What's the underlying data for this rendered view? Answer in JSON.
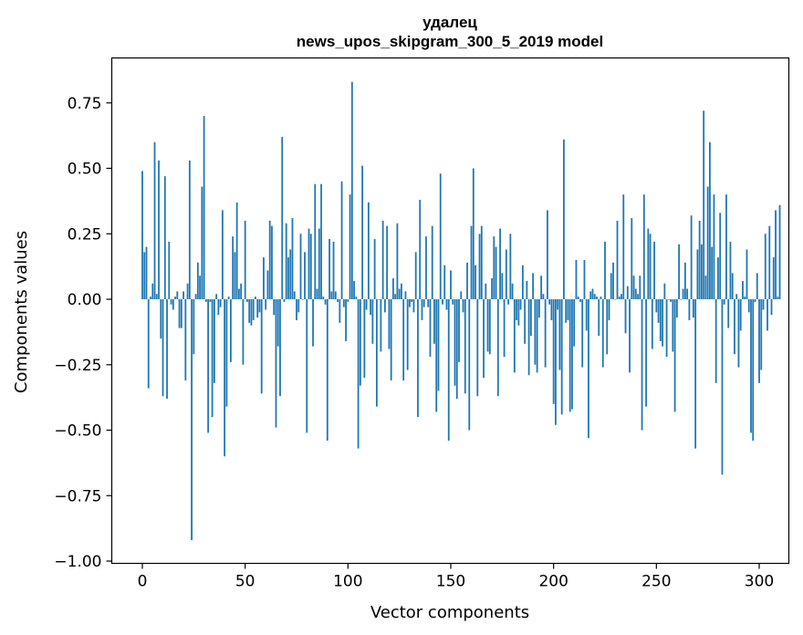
{
  "chart_data": {
    "type": "bar",
    "title": "удалец",
    "subtitle": "news_upos_skipgram_300_5_2019 model",
    "xlabel": "Vector components",
    "ylabel": "Components values",
    "xlim": [
      -15,
      315
    ],
    "ylim": [
      -1.02,
      0.92
    ],
    "xticks": [
      0,
      50,
      100,
      150,
      200,
      250,
      300
    ],
    "xtick_labels": [
      "0",
      "50",
      "100",
      "150",
      "200",
      "250",
      "300"
    ],
    "yticks": [
      -1.0,
      -0.75,
      -0.5,
      -0.25,
      0.0,
      0.25,
      0.5,
      0.75
    ],
    "ytick_labels": [
      "−1.00",
      "−0.75",
      "−0.50",
      "−0.25",
      "0.00",
      "0.25",
      "0.50",
      "0.75"
    ],
    "bar_color": "#1f77b4",
    "values": [
      0.49,
      0.18,
      0.2,
      -0.34,
      0.01,
      0.06,
      0.6,
      0.02,
      0.53,
      -0.15,
      -0.37,
      0.47,
      -0.38,
      0.22,
      -0.02,
      -0.04,
      0.01,
      0.03,
      -0.11,
      -0.11,
      0.03,
      -0.31,
      0.06,
      0.53,
      -0.92,
      -0.21,
      0.02,
      0.14,
      0.09,
      0.43,
      0.7,
      -0.01,
      -0.51,
      -0.01,
      -0.45,
      -0.32,
      0.02,
      -0.06,
      -0.03,
      0.34,
      -0.6,
      -0.41,
      0.01,
      -0.24,
      0.24,
      0.18,
      0.37,
      0.04,
      0.06,
      -0.25,
      0.3,
      -0.01,
      -0.09,
      -0.1,
      -0.08,
      0.01,
      -0.07,
      -0.05,
      -0.36,
      0.16,
      -0.04,
      0.11,
      0.3,
      0.28,
      -0.06,
      -0.49,
      -0.18,
      -0.37,
      0.62,
      -0.01,
      0.29,
      0.16,
      0.19,
      0.31,
      0.03,
      -0.08,
      -0.05,
      0.25,
      0.0,
      0.18,
      -0.51,
      0.27,
      0.25,
      -0.18,
      0.44,
      0.04,
      0.27,
      0.44,
      0.01,
      -0.02,
      -0.54,
      0.23,
      0.03,
      0.22,
      0.03,
      -0.01,
      -0.09,
      0.45,
      -0.03,
      -0.16,
      -0.01,
      0.4,
      0.83,
      0.07,
      0.01,
      -0.57,
      -0.33,
      0.51,
      -0.3,
      -0.04,
      0.37,
      -0.06,
      -0.17,
      0.23,
      -0.41,
      0.0,
      -0.2,
      0.3,
      -0.05,
      0.28,
      -0.19,
      -0.31,
      0.08,
      0.02,
      0.29,
      0.04,
      0.06,
      -0.31,
      0.03,
      -0.27,
      -0.03,
      -0.01,
      -0.05,
      0.18,
      -0.45,
      0.38,
      -0.08,
      -0.03,
      0.24,
      -0.03,
      -0.22,
      0.28,
      -0.17,
      -0.43,
      -0.35,
      0.48,
      -0.02,
      0.13,
      -0.04,
      -0.54,
      0.11,
      -0.02,
      -0.33,
      -0.38,
      -0.24,
      0.03,
      -0.05,
      -0.36,
      0.14,
      -0.5,
      0.28,
      0.5,
      0.13,
      -0.37,
      0.25,
      0.28,
      -0.3,
      0.06,
      -0.2,
      -0.21,
      0.08,
      0.24,
      0.2,
      -0.37,
      0.27,
      0.1,
      -0.22,
      0.19,
      -0.02,
      0.25,
      0.06,
      -0.28,
      -0.08,
      -0.1,
      -0.04,
      0.13,
      -0.17,
      0.07,
      -0.29,
      -0.14,
      0.1,
      -0.25,
      -0.28,
      -0.07,
      0.09,
      0.02,
      -0.26,
      0.34,
      -0.02,
      -0.08,
      -0.4,
      -0.48,
      -0.04,
      -0.27,
      -0.44,
      0.61,
      -0.09,
      -0.08,
      -0.43,
      -0.42,
      -0.18,
      0.15,
      0.01,
      -0.01,
      -0.26,
      0.15,
      -0.12,
      -0.53,
      0.03,
      0.04,
      0.02,
      0.01,
      -0.14,
      0.01,
      -0.26,
      0.22,
      -0.21,
      -0.08,
      0.1,
      0.14,
      0.0,
      0.3,
      0.01,
      0.02,
      0.4,
      -0.13,
      0.05,
      -0.28,
      0.31,
      0.09,
      0.04,
      0.02,
      0.09,
      -0.5,
      0.4,
      -0.41,
      0.27,
      0.25,
      -0.19,
      0.22,
      -0.05,
      -0.09,
      -0.16,
      -0.18,
      0.06,
      -0.22,
      0.0,
      -0.01,
      -0.2,
      -0.43,
      -0.07,
      0.21,
      0.0,
      0.04,
      0.14,
      0.04,
      -0.08,
      0.32,
      -0.07,
      -0.57,
      0.19,
      0.3,
      0.21,
      0.72,
      0.09,
      0.43,
      0.6,
      0.2,
      0.4,
      -0.32,
      0.16,
      0.33,
      -0.67,
      -0.02,
      0.4,
      -0.11,
      0.22,
      0.1,
      -0.21,
      0.02,
      -0.26,
      -0.12,
      0.07,
      0.01,
      0.19,
      -0.05,
      -0.51,
      -0.54,
      -0.01,
      0.1,
      -0.32,
      -0.27,
      -0.04,
      0.25,
      -0.12,
      0.28,
      -0.06,
      0.16,
      0.34,
      0.01,
      0.36
    ]
  }
}
